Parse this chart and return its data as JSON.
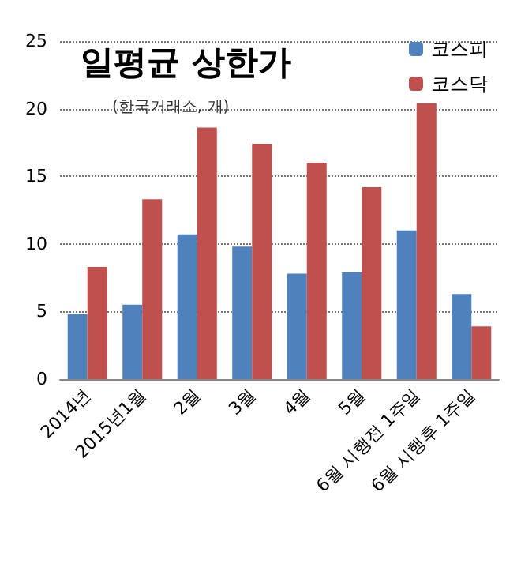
{
  "chart_data": {
    "type": "bar",
    "title": "일평균 상한가",
    "subtitle": "(한국거래소, 개)",
    "categories": [
      "2014년",
      "2015년1월",
      "2월",
      "3월",
      "4월",
      "5월",
      "6월 시행전 1주일",
      "6월 시행후 1주일"
    ],
    "series": [
      {
        "name": "코스피",
        "color": "#4f81bd",
        "values": [
          4.8,
          5.5,
          10.7,
          9.8,
          7.8,
          7.9,
          11.0,
          6.3
        ]
      },
      {
        "name": "코스닥",
        "color": "#c0504d",
        "values": [
          8.3,
          13.3,
          18.6,
          17.4,
          16.0,
          14.2,
          20.4,
          3.9
        ]
      }
    ],
    "ylim": [
      0,
      25
    ],
    "yticks": [
      0,
      5,
      10,
      15,
      20,
      25
    ],
    "grid": "y",
    "legend": "top right"
  }
}
